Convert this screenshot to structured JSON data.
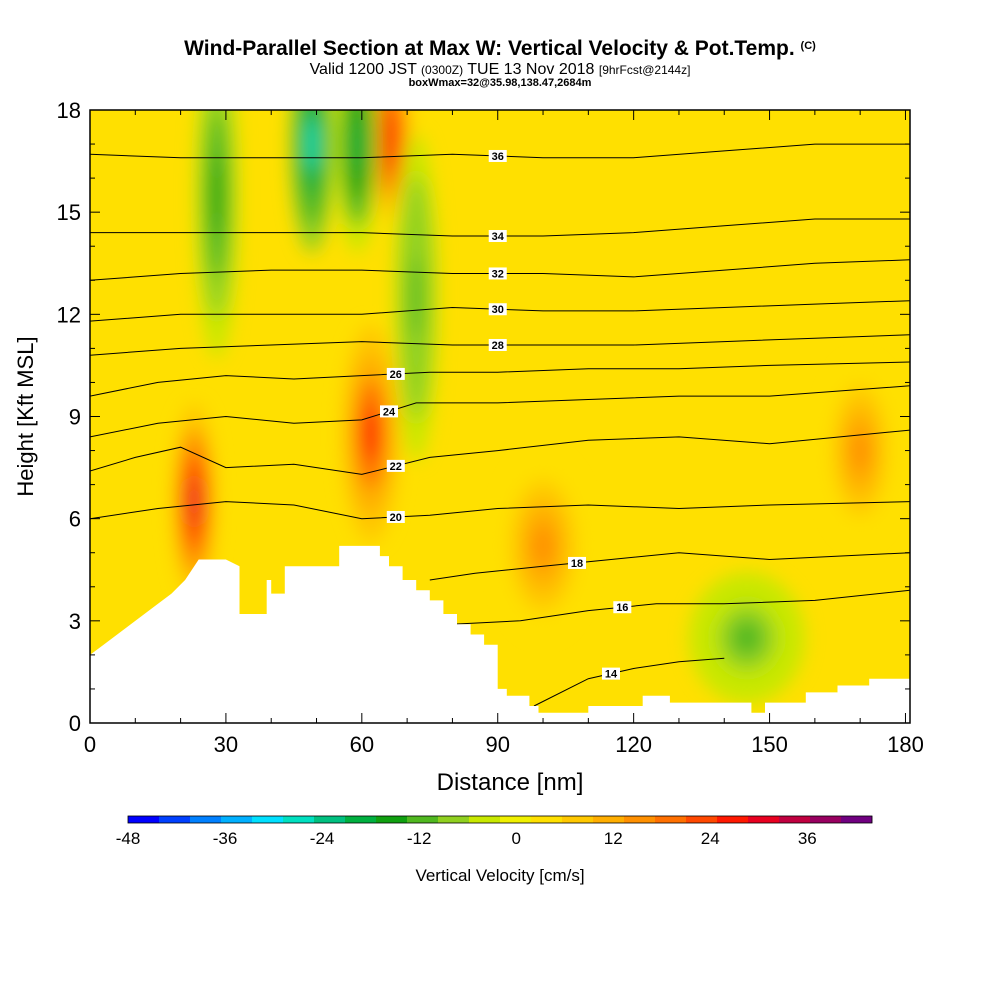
{
  "title": {
    "main": "Wind-Parallel Section at Max W: Vertical Velocity & Pot.Temp.",
    "copyright": "(C)"
  },
  "subtitle": {
    "valid": "Valid 1200 JST",
    "utc": "(0300Z)",
    "date": "TUE 13 Nov 2018",
    "fcst": "[9hrFcst@2144z]"
  },
  "subtitle2": "boxWmax=32@35.98,138.47,2684m",
  "chart_data": {
    "type": "heatmap",
    "xlabel": "Distance [nm]",
    "ylabel": "Height [Kft MSL]",
    "xlim": [
      0,
      181
    ],
    "ylim": [
      0,
      18
    ],
    "x_ticks": [
      "0",
      "30",
      "60",
      "90",
      "120",
      "150",
      "180"
    ],
    "y_ticks": [
      "0",
      "3",
      "6",
      "9",
      "12",
      "15",
      "18"
    ],
    "colorbar": {
      "label": "Vertical Velocity [cm/s]",
      "tick_labels": [
        "-48",
        "-36",
        "-24",
        "-12",
        "0",
        "12",
        "24",
        "36"
      ],
      "tick_values": [
        -48,
        -36,
        -24,
        -12,
        0,
        12,
        24,
        36
      ],
      "range": [
        -48,
        44
      ],
      "colors": [
        "#0000ff",
        "#0040ff",
        "#0080ff",
        "#00b0ff",
        "#00e0ff",
        "#00e0c0",
        "#00c080",
        "#00b040",
        "#10a010",
        "#50b820",
        "#90d020",
        "#c8e800",
        "#f0f000",
        "#ffe000",
        "#ffc800",
        "#ffae00",
        "#ff9000",
        "#ff7000",
        "#ff4800",
        "#ff1800",
        "#e80020",
        "#c00040",
        "#980060",
        "#700080"
      ]
    },
    "theta_contours": [
      {
        "label": "14",
        "value": 14,
        "x": [
          98,
          110,
          120,
          130,
          140
        ],
        "y": [
          0.5,
          1.3,
          1.6,
          1.8,
          1.9
        ]
      },
      {
        "label": "16",
        "value": 16,
        "x": [
          80,
          95,
          110,
          125,
          140,
          160,
          181
        ],
        "y": [
          2.9,
          3.0,
          3.3,
          3.5,
          3.5,
          3.6,
          3.9
        ]
      },
      {
        "label": "18",
        "value": 18,
        "x": [
          75,
          85,
          100,
          115,
          130,
          150,
          181
        ],
        "y": [
          4.2,
          4.4,
          4.6,
          4.8,
          5.0,
          4.8,
          5.0
        ]
      },
      {
        "label": "20",
        "value": 20,
        "x": [
          0,
          15,
          30,
          45,
          60,
          75,
          90,
          110,
          130,
          150,
          181
        ],
        "y": [
          6.0,
          6.3,
          6.5,
          6.4,
          6.0,
          6.1,
          6.3,
          6.4,
          6.3,
          6.4,
          6.5
        ]
      },
      {
        "label": "22",
        "value": 22,
        "x": [
          0,
          10,
          20,
          30,
          45,
          60,
          75,
          90,
          110,
          130,
          150,
          181
        ],
        "y": [
          7.4,
          7.8,
          8.1,
          7.5,
          7.6,
          7.3,
          7.8,
          8.0,
          8.3,
          8.4,
          8.2,
          8.6
        ]
      },
      {
        "label": "24",
        "value": 24,
        "x": [
          0,
          15,
          30,
          45,
          60,
          72,
          90,
          110,
          130,
          150,
          181
        ],
        "y": [
          8.4,
          8.8,
          9.0,
          8.8,
          8.9,
          9.4,
          9.4,
          9.5,
          9.6,
          9.6,
          9.9
        ]
      },
      {
        "label": "26",
        "value": 26,
        "x": [
          0,
          15,
          30,
          45,
          60,
          75,
          90,
          110,
          130,
          150,
          181
        ],
        "y": [
          9.6,
          10.0,
          10.2,
          10.1,
          10.2,
          10.3,
          10.3,
          10.4,
          10.4,
          10.5,
          10.6
        ]
      },
      {
        "label": "28",
        "value": 28,
        "x": [
          0,
          20,
          40,
          60,
          80,
          100,
          120,
          140,
          160,
          181
        ],
        "y": [
          10.8,
          11.0,
          11.1,
          11.2,
          11.1,
          11.1,
          11.1,
          11.2,
          11.3,
          11.4
        ]
      },
      {
        "label": "30",
        "value": 30,
        "x": [
          0,
          20,
          40,
          60,
          80,
          100,
          120,
          140,
          160,
          181
        ],
        "y": [
          11.8,
          12.0,
          12.0,
          12.0,
          12.2,
          12.1,
          12.1,
          12.2,
          12.3,
          12.4
        ]
      },
      {
        "label": "32",
        "value": 32,
        "x": [
          0,
          20,
          40,
          60,
          80,
          100,
          120,
          140,
          160,
          181
        ],
        "y": [
          13.0,
          13.2,
          13.3,
          13.3,
          13.2,
          13.2,
          13.1,
          13.3,
          13.5,
          13.6
        ]
      },
      {
        "label": "34",
        "value": 34,
        "x": [
          0,
          20,
          40,
          60,
          80,
          100,
          120,
          140,
          160,
          181
        ],
        "y": [
          14.4,
          14.4,
          14.4,
          14.4,
          14.3,
          14.3,
          14.4,
          14.6,
          14.8,
          14.8
        ]
      },
      {
        "label": "36",
        "value": 36,
        "x": [
          0,
          20,
          40,
          60,
          80,
          100,
          120,
          140,
          160,
          181
        ],
        "y": [
          16.7,
          16.6,
          16.6,
          16.6,
          16.7,
          16.6,
          16.6,
          16.8,
          17.0,
          17.0
        ]
      }
    ],
    "vertical_velocity_features": [
      {
        "sign": "up",
        "max_cm_s": 32,
        "x": 23,
        "y": 6.5,
        "rx": 3,
        "ry": 1.8
      },
      {
        "sign": "up",
        "max_cm_s": 28,
        "x": 66,
        "y": 17.2,
        "rx": 3,
        "ry": 1.5
      },
      {
        "sign": "up",
        "max_cm_s": 26,
        "x": 62,
        "y": 8.5,
        "rx": 4,
        "ry": 2.0
      },
      {
        "sign": "up",
        "max_cm_s": 14,
        "x": 100,
        "y": 5.2,
        "rx": 6,
        "ry": 1.6
      },
      {
        "sign": "up",
        "max_cm_s": 14,
        "x": 170,
        "y": 8.0,
        "rx": 5,
        "ry": 1.6
      },
      {
        "sign": "down",
        "max_cm_s": -26,
        "x": 49,
        "y": 17.0,
        "rx": 3,
        "ry": 2.0
      },
      {
        "sign": "down",
        "max_cm_s": -20,
        "x": 59,
        "y": 17.0,
        "rx": 3,
        "ry": 2.0
      },
      {
        "sign": "down",
        "max_cm_s": -14,
        "x": 28,
        "y": 15.5,
        "rx": 3,
        "ry": 3.0
      },
      {
        "sign": "down",
        "max_cm_s": -12,
        "x": 72,
        "y": 12.5,
        "rx": 3,
        "ry": 3.0
      },
      {
        "sign": "down",
        "max_cm_s": -10,
        "x": 145,
        "y": 2.5,
        "rx": 8,
        "ry": 1.2
      }
    ],
    "terrain": {
      "x": [
        0,
        3,
        6,
        9,
        12,
        15,
        18,
        21,
        24,
        27,
        30,
        33,
        33,
        39,
        39,
        40,
        40,
        43,
        43,
        46,
        46,
        55,
        55,
        58,
        58,
        64,
        64,
        66,
        66,
        69,
        69,
        72,
        72,
        75,
        75,
        78,
        78,
        81,
        81,
        84,
        84,
        87,
        87,
        90,
        90,
        92,
        92,
        97,
        97,
        99,
        99,
        110,
        110,
        122,
        122,
        128,
        128,
        146,
        146,
        149,
        149,
        158,
        158,
        165,
        165,
        172,
        172,
        181
      ],
      "y": [
        2.0,
        2.3,
        2.6,
        2.9,
        3.2,
        3.5,
        3.8,
        4.2,
        4.8,
        4.8,
        4.8,
        4.6,
        3.2,
        3.2,
        4.2,
        4.2,
        3.8,
        3.8,
        4.6,
        4.6,
        4.6,
        4.6,
        5.2,
        5.2,
        5.2,
        5.2,
        4.9,
        4.9,
        4.6,
        4.6,
        4.2,
        4.2,
        3.9,
        3.9,
        3.6,
        3.6,
        3.2,
        3.2,
        2.9,
        2.9,
        2.6,
        2.6,
        2.3,
        2.3,
        1.0,
        1.0,
        0.8,
        0.8,
        0.5,
        0.5,
        0.3,
        0.3,
        0.5,
        0.5,
        0.8,
        0.8,
        0.6,
        0.6,
        0.3,
        0.3,
        0.6,
        0.6,
        0.9,
        0.9,
        1.1,
        1.1,
        1.3,
        1.3
      ]
    }
  }
}
